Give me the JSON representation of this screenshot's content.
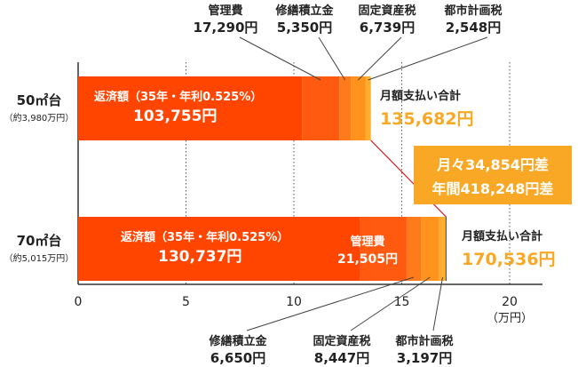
{
  "chart_data": {
    "type": "bar",
    "orientation": "horizontal",
    "stacked": true,
    "unit": "（万円）",
    "xlim": [
      0,
      23
    ],
    "x_ticks": [
      {
        "value": 0,
        "label": "0"
      },
      {
        "value": 5,
        "label": "5"
      },
      {
        "value": 10,
        "label": "10"
      },
      {
        "value": 15,
        "label": "15"
      },
      {
        "value": 20,
        "label": "20"
      }
    ],
    "grid": "vertical-dotted",
    "colors": {
      "repayment": "#ff4500",
      "management": "#ff5a10",
      "repair": "#ff7a1a",
      "property_tax": "#ff931c",
      "city_tax": "#ffad2e",
      "total_text": "#f9a825",
      "diff_box": "#f9a825",
      "connector": "#e01010"
    },
    "categories": [
      {
        "name": "50㎡台",
        "sub": "（約3,980万円）",
        "segments": [
          {
            "key": "repayment",
            "value": 10.3755,
            "title": "返済額（35年・年利0.525%）",
            "amount": "103,755円"
          },
          {
            "key": "management",
            "value": 1.729,
            "title": "管理費",
            "amount": "17,290円"
          },
          {
            "key": "repair",
            "value": 0.535,
            "title": "修繕積立金",
            "amount": "5,350円"
          },
          {
            "key": "property_tax",
            "value": 0.6739,
            "title": "固定資産税",
            "amount": "6,739円"
          },
          {
            "key": "city_tax",
            "value": 0.2548,
            "title": "都市計画税",
            "amount": "2,548円"
          }
        ],
        "total_label": "月額支払い合計",
        "total_value": "135,682円"
      },
      {
        "name": "70㎡台",
        "sub": "（約5,015万円）",
        "segments": [
          {
            "key": "repayment",
            "value": 13.0737,
            "title": "返済額（35年・年利0.525%）",
            "amount": "130,737円"
          },
          {
            "key": "management",
            "value": 2.1505,
            "title": "管理費",
            "amount": "21,505円"
          },
          {
            "key": "repair",
            "value": 0.665,
            "title": "修繕積立金",
            "amount": "6,650円"
          },
          {
            "key": "property_tax",
            "value": 0.8447,
            "title": "固定資産税",
            "amount": "8,447円"
          },
          {
            "key": "city_tax",
            "value": 0.3197,
            "title": "都市計画税",
            "amount": "3,197円"
          }
        ],
        "total_label": "月額支払い合計",
        "total_value": "170,536円"
      }
    ],
    "difference": {
      "monthly": "月々34,854円差",
      "yearly": "年間418,248円差"
    }
  }
}
